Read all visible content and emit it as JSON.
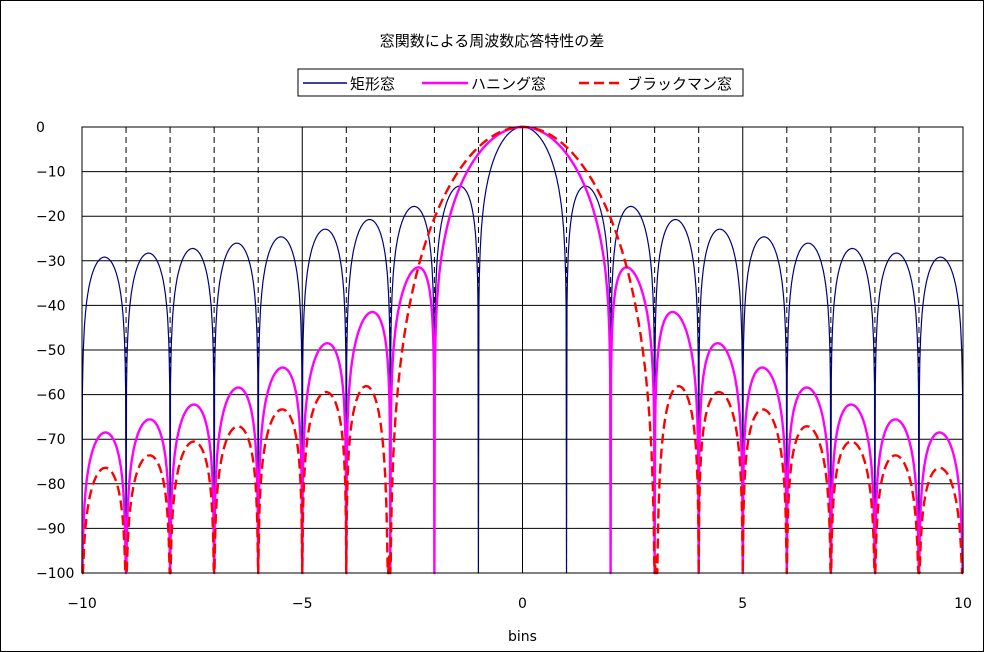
{
  "chart_data": {
    "type": "line",
    "title": "窓関数による周波数応答特性の差",
    "xlabel": "bins",
    "ylabel": "",
    "xlim": [
      -10,
      10
    ],
    "ylim": [
      -100,
      0
    ],
    "x_ticks": [
      -10,
      -5,
      0,
      5,
      10
    ],
    "y_ticks": [
      0,
      -10,
      -20,
      -30,
      -40,
      -50,
      -60,
      -70,
      -80,
      -90,
      -100
    ],
    "grid": true,
    "legend_position": "top",
    "series": [
      {
        "name": "矩形窓",
        "color": "#000080",
        "style": "solid",
        "window": "rect"
      },
      {
        "name": "ハニング窓",
        "color": "#ff00ff",
        "style": "solid",
        "window": "hann"
      },
      {
        "name": "ブラックマン窓",
        "color": "#ff0000",
        "style": "dashed",
        "window": "blackman"
      }
    ]
  }
}
